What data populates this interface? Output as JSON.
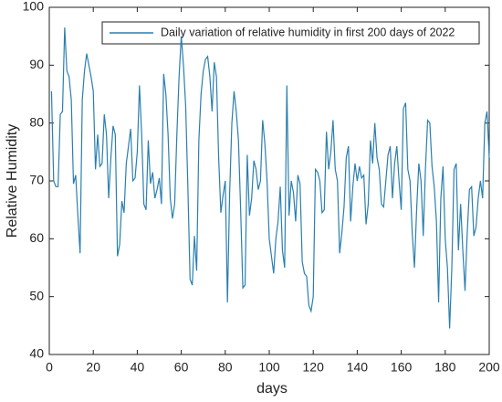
{
  "chart_data": {
    "type": "line",
    "legend_text": "Daily variation of relative humidity in first 200 days of 2022",
    "legend": "upper right",
    "x_label": "days",
    "y_label": "Relative Humidity",
    "xlim": [
      0,
      200
    ],
    "xticks": [
      0,
      20,
      40,
      60,
      80,
      100,
      120,
      140,
      160,
      180,
      200
    ],
    "ylim": [
      40,
      100
    ],
    "yticks": [
      40,
      50,
      60,
      70,
      80,
      90,
      100
    ],
    "x": [
      1,
      2,
      3,
      4,
      5,
      6,
      7,
      8,
      9,
      10,
      11,
      12,
      13,
      14,
      15,
      16,
      17,
      18,
      19,
      20,
      21,
      22,
      23,
      24,
      25,
      26,
      27,
      28,
      29,
      30,
      31,
      32,
      33,
      34,
      35,
      36,
      37,
      38,
      39,
      40,
      41,
      42,
      43,
      44,
      45,
      46,
      47,
      48,
      49,
      50,
      51,
      52,
      53,
      54,
      55,
      56,
      57,
      58,
      59,
      60,
      61,
      62,
      63,
      64,
      65,
      66,
      67,
      68,
      69,
      70,
      71,
      72,
      73,
      74,
      75,
      76,
      77,
      78,
      79,
      80,
      81,
      82,
      83,
      84,
      85,
      86,
      87,
      88,
      89,
      90,
      91,
      92,
      93,
      94,
      95,
      96,
      97,
      98,
      99,
      100,
      101,
      102,
      103,
      104,
      105,
      106,
      107,
      108,
      109,
      110,
      111,
      112,
      113,
      114,
      115,
      116,
      117,
      118,
      119,
      120,
      121,
      122,
      123,
      124,
      125,
      126,
      127,
      128,
      129,
      130,
      131,
      132,
      133,
      134,
      135,
      136,
      137,
      138,
      139,
      140,
      141,
      142,
      143,
      144,
      145,
      146,
      147,
      148,
      149,
      150,
      151,
      152,
      153,
      154,
      155,
      156,
      157,
      158,
      159,
      160,
      161,
      162,
      163,
      164,
      165,
      166,
      167,
      168,
      169,
      170,
      171,
      172,
      173,
      174,
      175,
      176,
      177,
      178,
      179,
      180,
      181,
      182,
      183,
      184,
      185,
      186,
      187,
      188,
      189,
      190,
      191,
      192,
      193,
      194,
      195,
      196,
      197,
      198,
      199,
      200
    ],
    "series": [
      {
        "name": "Daily variation of relative humidity in first 200 days of 2022",
        "color": "#2a7fb0",
        "values": [
          85.5,
          70,
          69,
          69,
          81.5,
          82,
          96.5,
          89,
          88,
          84,
          69.5,
          71,
          64,
          57.5,
          84,
          89,
          92,
          90,
          88,
          85.5,
          72,
          78,
          72.5,
          73,
          81.5,
          78,
          67,
          74,
          79.5,
          78,
          57,
          59,
          66.5,
          64.5,
          73,
          76,
          79,
          70,
          70.5,
          75,
          86.5,
          78,
          66,
          65,
          77,
          69.5,
          71.5,
          67,
          68.5,
          70.5,
          66,
          88.5,
          85,
          78,
          67,
          63.5,
          66,
          78,
          88,
          95,
          90,
          83,
          69,
          53,
          52,
          60.5,
          54.5,
          77,
          85,
          89,
          91,
          91.5,
          88,
          82,
          90.5,
          88,
          74,
          64.5,
          67.5,
          70,
          49,
          68,
          80,
          85.5,
          82,
          77,
          65,
          51.5,
          52,
          74.5,
          64,
          67,
          73.5,
          72,
          68.5,
          70,
          80.5,
          76.5,
          70,
          60,
          57,
          54,
          60,
          63,
          69,
          58,
          55,
          86.5,
          64,
          70,
          68,
          63,
          71,
          69.5,
          56,
          54,
          53.5,
          48.5,
          47.5,
          50,
          72,
          71.5,
          70,
          64.5,
          65,
          78.5,
          72,
          75,
          80.5,
          72,
          70,
          57.5,
          61,
          65.5,
          74,
          76,
          63,
          69,
          73,
          70,
          72.5,
          70.5,
          71,
          62.5,
          66,
          77,
          73,
          80,
          74,
          72,
          66,
          65.5,
          70,
          74.5,
          76,
          67,
          73,
          76,
          70,
          65,
          82.5,
          83.5,
          72,
          70,
          61,
          55,
          65,
          73,
          70,
          60.5,
          72,
          80.5,
          80,
          72.5,
          69,
          63,
          49,
          67,
          72.5,
          60,
          55,
          44.5,
          55,
          72,
          73,
          58,
          66,
          58,
          51,
          61,
          68.5,
          69,
          60.5,
          62,
          67,
          70,
          67,
          80,
          82,
          74
        ]
      }
    ]
  }
}
